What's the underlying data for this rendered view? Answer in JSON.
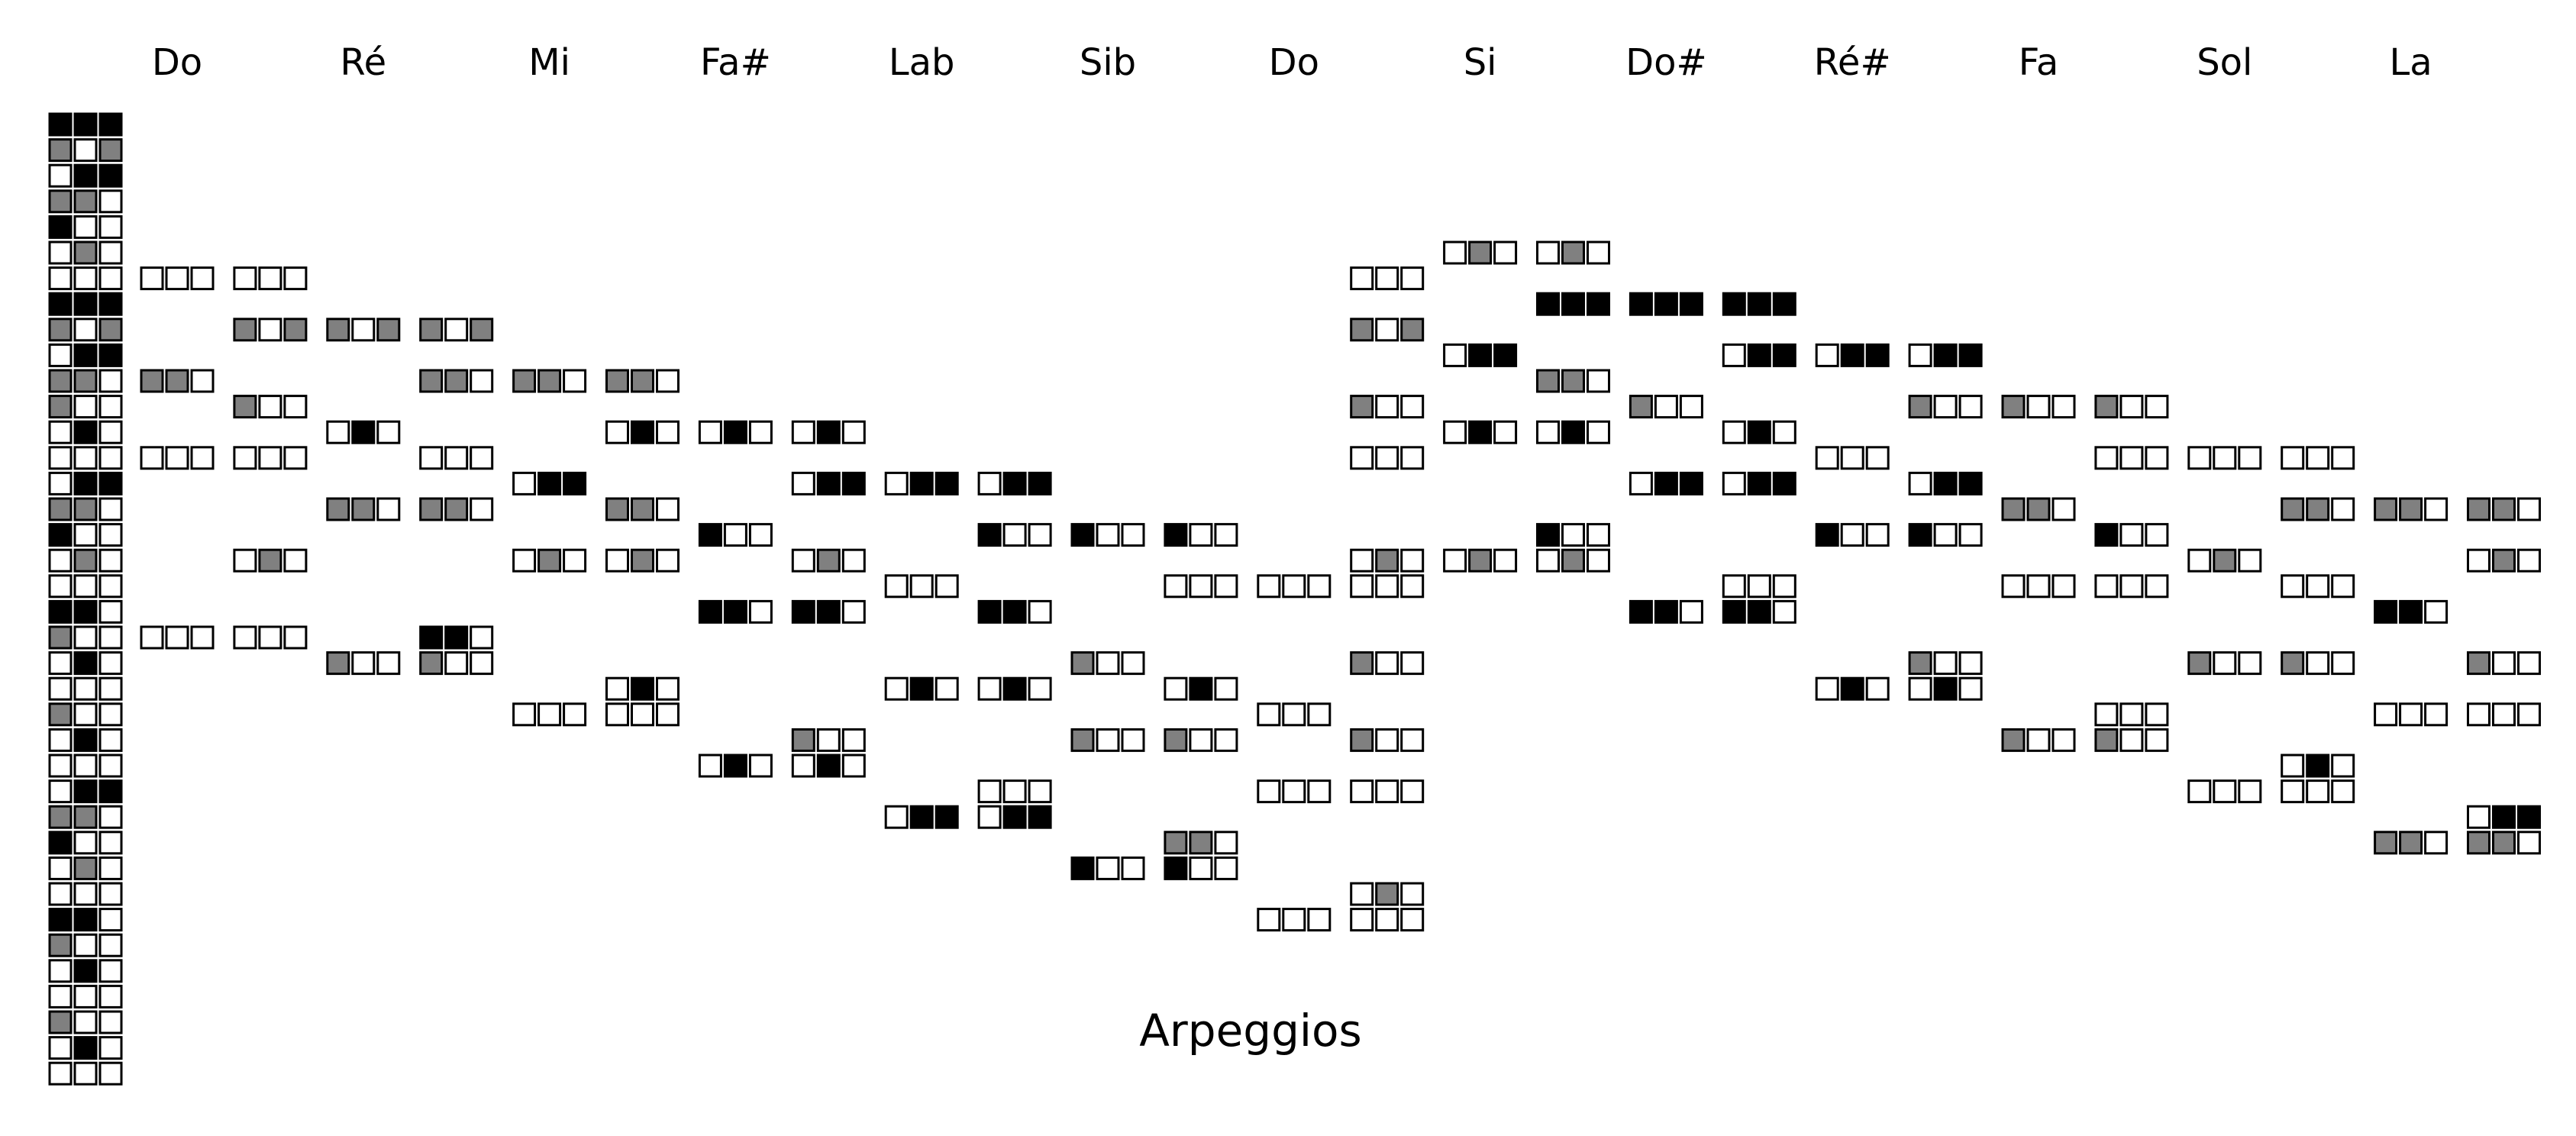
{
  "title": "Arpeggios",
  "colors": {
    "filled": "#000000",
    "half": "#808080",
    "empty": "#ffffff",
    "stroke": "#000000"
  },
  "legend_states": [
    "BBB",
    "GWG",
    "WBB",
    "GGW",
    "BWW",
    "WGW",
    "WWW",
    "BBB",
    "GWG",
    "WBB",
    "GGW",
    "GWW",
    "WBW",
    "WWW",
    "WBB",
    "GGW",
    "BWW",
    "WGW",
    "WWW",
    "BBW",
    "GWW",
    "WBW",
    "WWW",
    "GWW",
    "WBW",
    "WWW",
    "WBB",
    "GGW",
    "BWW",
    "WGW",
    "WWW",
    "BBW",
    "GWW",
    "WBW",
    "WWW",
    "GWW",
    "WBW",
    "WWW"
  ],
  "columns": [
    {
      "label": "Do",
      "cells": {
        "6": "WWW",
        "10": "GGW",
        "13": "WWW",
        "20": "WWW"
      }
    },
    {
      "label": "",
      "cells": {
        "6": "WWW",
        "8": "GWG",
        "11": "GWW",
        "13": "WWW",
        "17": "WGW",
        "20": "WWW"
      }
    },
    {
      "label": "Ré",
      "cells": {
        "8": "GWG",
        "12": "WBW",
        "15": "GGW",
        "21": "GWW"
      }
    },
    {
      "label": "",
      "cells": {
        "8": "GWG",
        "10": "GGW",
        "13": "WWW",
        "15": "GGW",
        "20": "BBW",
        "21": "GWW"
      }
    },
    {
      "label": "Mi",
      "cells": {
        "10": "GGW",
        "14": "WBB",
        "17": "WGW",
        "23": "WWW"
      }
    },
    {
      "label": "",
      "cells": {
        "10": "GGW",
        "12": "WBW",
        "15": "GGW",
        "17": "WGW",
        "22": "WBW",
        "23": "WWW"
      }
    },
    {
      "label": "Fa#",
      "cells": {
        "12": "WBW",
        "16": "BWW",
        "19": "BBW",
        "25": "WBW"
      }
    },
    {
      "label": "",
      "cells": {
        "12": "WBW",
        "14": "WBB",
        "17": "WGW",
        "19": "BBW",
        "24": "GWW",
        "25": "WBW"
      }
    },
    {
      "label": "Lab",
      "cells": {
        "14": "WBB",
        "18": "WWW",
        "22": "WBW",
        "27": "WBB"
      }
    },
    {
      "label": "",
      "cells": {
        "14": "WBB",
        "16": "BWW",
        "19": "BBW",
        "22": "WBW",
        "26": "WWW",
        "27": "WBB"
      }
    },
    {
      "label": "Sib",
      "cells": {
        "16": "BWW",
        "21": "GWW",
        "24": "GWW",
        "29": "BWW"
      }
    },
    {
      "label": "",
      "cells": {
        "16": "BWW",
        "18": "WWW",
        "22": "WBW",
        "24": "GWW",
        "28": "GGW",
        "29": "BWW"
      }
    },
    {
      "label": "Do",
      "cells": {
        "18": "WWW",
        "23": "WWW",
        "26": "WWW",
        "31": "WWW"
      }
    },
    {
      "label": "",
      "cells": {
        "6": "WWW",
        "8": "GWG",
        "11": "GWW",
        "13": "WWW",
        "17": "WGW",
        "18": "WWW",
        "21": "GWW",
        "24": "GWW",
        "26": "WWW",
        "30": "WGW",
        "31": "WWW"
      }
    },
    {
      "label": "Si",
      "cells": {
        "5": "WGW",
        "9": "WBB",
        "12": "WBW",
        "17": "WGW"
      }
    },
    {
      "label": "",
      "cells": {
        "5": "WGW",
        "7": "BBB",
        "10": "GGW",
        "12": "WBW",
        "16": "BWW",
        "17": "WGW"
      }
    },
    {
      "label": "Do#",
      "cells": {
        "7": "BBB",
        "11": "GWW",
        "14": "WBB",
        "19": "BBW"
      }
    },
    {
      "label": "",
      "cells": {
        "7": "BBB",
        "9": "WBB",
        "12": "WBW",
        "14": "WBB",
        "18": "WWW",
        "19": "BBW"
      }
    },
    {
      "label": "Ré#",
      "cells": {
        "9": "WBB",
        "13": "WWW",
        "16": "BWW",
        "22": "WBW"
      }
    },
    {
      "label": "",
      "cells": {
        "9": "WBB",
        "11": "GWW",
        "14": "WBB",
        "16": "BWW",
        "21": "GWW",
        "22": "WBW"
      }
    },
    {
      "label": "Fa",
      "cells": {
        "11": "GWW",
        "15": "GGW",
        "18": "WWW",
        "24": "GWW"
      }
    },
    {
      "label": "",
      "cells": {
        "11": "GWW",
        "13": "WWW",
        "16": "BWW",
        "18": "WWW",
        "23": "WWW",
        "24": "GWW"
      }
    },
    {
      "label": "Sol",
      "cells": {
        "13": "WWW",
        "17": "WGW",
        "21": "GWW",
        "26": "WWW"
      }
    },
    {
      "label": "",
      "cells": {
        "13": "WWW",
        "15": "GGW",
        "18": "WWW",
        "21": "GWW",
        "25": "WBW",
        "26": "WWW"
      }
    },
    {
      "label": "La",
      "cells": {
        "15": "GGW",
        "19": "BBW",
        "23": "WWW",
        "28": "GGW"
      }
    },
    {
      "label": "",
      "cells": {
        "15": "GGW",
        "17": "WGW",
        "21": "GWW",
        "23": "WWW",
        "27": "WBB",
        "28": "GGW"
      }
    }
  ]
}
